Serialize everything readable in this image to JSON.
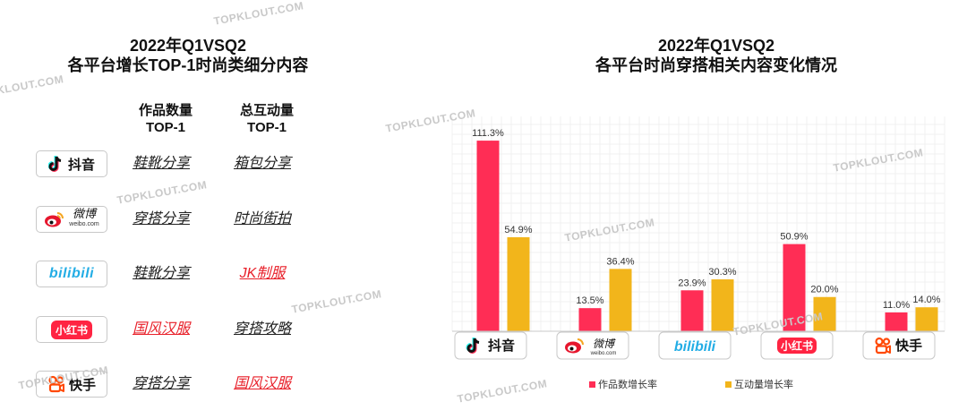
{
  "left_panel": {
    "title_line1": "2022年Q1VSQ2",
    "title_line2": "各平台增长TOP-1时尚类细分内容",
    "col_works_line1": "作品数量",
    "col_works_line2": "TOP-1",
    "col_inter_line1": "总互动量",
    "col_inter_line2": "TOP-1",
    "rows": [
      {
        "platform": "抖音",
        "works": "鞋靴分享",
        "works_red": false,
        "interactions": "箱包分享",
        "interactions_red": false
      },
      {
        "platform": "微博",
        "platform_sub": "weibo.com",
        "works": "穿搭分享",
        "works_red": false,
        "interactions": "时尚街拍",
        "interactions_red": false
      },
      {
        "platform": "bilibili",
        "works": "鞋靴分享",
        "works_red": false,
        "interactions": "JK制服",
        "interactions_red": true
      },
      {
        "platform": "小红书",
        "works": "国风汉服",
        "works_red": true,
        "interactions": "穿搭攻略",
        "interactions_red": false
      },
      {
        "platform": "快手",
        "works": "穿搭分享",
        "works_red": false,
        "interactions": "国风汉服",
        "interactions_red": true
      }
    ]
  },
  "right_panel": {
    "title_line1": "2022年Q1VSQ2",
    "title_line2": "各平台时尚穿搭相关内容变化情况"
  },
  "watermark_text": "TOPKLOUT.COM",
  "colors": {
    "works": "#ff2d55",
    "interactions": "#f2b51b",
    "red_text": "#e8202a",
    "douyin_cyan": "#25f4ee",
    "douyin_pink": "#fe2c55",
    "weibo_red": "#e6162d",
    "bili_blue": "#23ade5",
    "xhs_red": "#ff2442",
    "kuaishou_orange": "#ff4906"
  },
  "chart_data": {
    "type": "bar",
    "categories": [
      "抖音",
      "微博",
      "bilibili",
      "小红书",
      "快手"
    ],
    "series": [
      {
        "name": "作品数增长率",
        "values": [
          111.3,
          13.5,
          23.9,
          50.9,
          11.0
        ],
        "labels": [
          "111.3%",
          "13.5%",
          "23.9%",
          "50.9%",
          "11.0%"
        ]
      },
      {
        "name": "互动量增长率",
        "values": [
          54.9,
          36.4,
          30.3,
          20.0,
          14.0
        ],
        "labels": [
          "54.9%",
          "36.4%",
          "30.3%",
          "20.0%",
          "14.0%"
        ]
      }
    ],
    "title": "2022年Q1VSQ2 各平台时尚穿搭相关内容变化情况",
    "xlabel": "",
    "ylabel": "",
    "ylim": [
      0,
      115
    ],
    "unit": "%",
    "grid": true,
    "legend_position": "bottom"
  }
}
